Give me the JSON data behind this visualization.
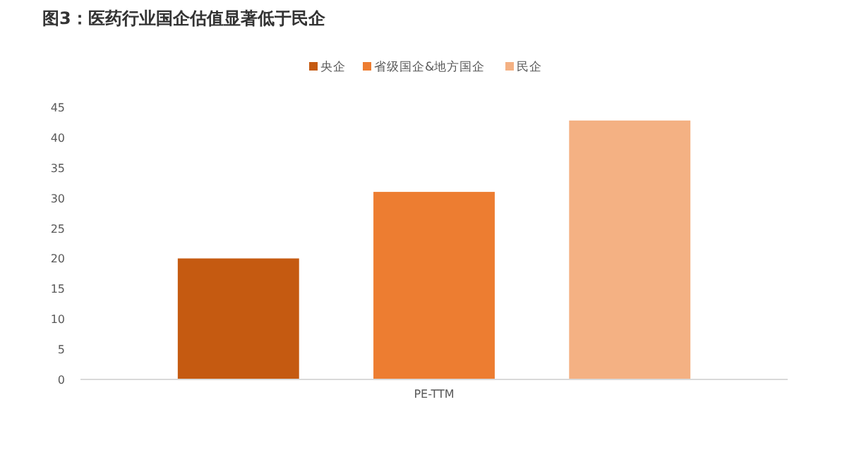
{
  "chart_data": {
    "type": "bar",
    "title": "图3：医药行业国企估值显著低于民企",
    "categories": [
      "PE-TTM"
    ],
    "series": [
      {
        "name": "央企",
        "color": "#c55a11",
        "values": [
          20
        ]
      },
      {
        "name": "省级国企&地方国企",
        "color": "#ed7d31",
        "values": [
          31
        ]
      },
      {
        "name": "民企",
        "color": "#f4b183",
        "values": [
          42.8
        ]
      }
    ],
    "ylim": [
      0,
      45
    ],
    "yticks": [
      0,
      5,
      10,
      15,
      20,
      25,
      30,
      35,
      40,
      45
    ],
    "legend": "top",
    "grid": false
  }
}
